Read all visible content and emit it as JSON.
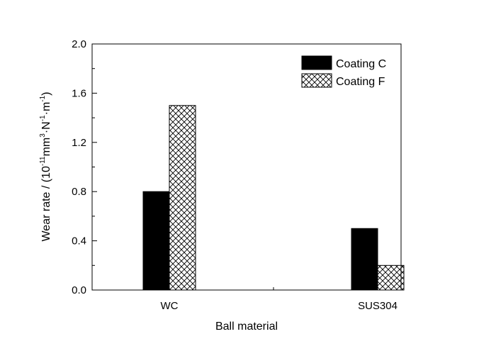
{
  "chart_data": {
    "type": "bar",
    "categories": [
      "WC",
      "SUS304"
    ],
    "series": [
      {
        "name": "Coating C",
        "values": [
          0.8,
          0.5
        ],
        "fill": "solid",
        "color": "#000000"
      },
      {
        "name": "Coating F",
        "values": [
          1.5,
          0.2
        ],
        "fill": "crosshatch",
        "color": "#000000"
      }
    ],
    "xlabel": "Ball material",
    "ylabel": {
      "prefix": "Wear rate / (10",
      "exp1": "-11",
      "mid1": "mm",
      "exp2": "3",
      "mid2": "·N",
      "exp3": "-1",
      "mid3": "·m",
      "exp4": "-1",
      "suffix": ")"
    },
    "ylim": [
      0,
      2.0
    ],
    "yticks": [
      "0.0",
      "0.4",
      "0.8",
      "1.2",
      "1.6",
      "2.0"
    ],
    "grid": false,
    "legend_position": "top-right"
  }
}
